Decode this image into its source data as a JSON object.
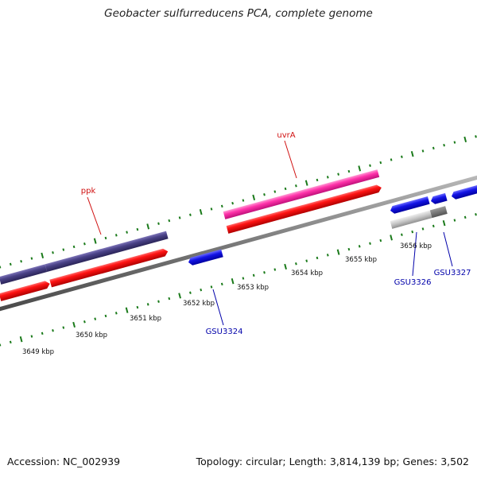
{
  "title": "Geobacter sulfurreducens PCA, complete genome",
  "footer": {
    "accession": "Accession: NC_002939",
    "summary": "Topology: circular; Length: 3,814,139 bp; Genes: 3,502"
  },
  "colors": {
    "backbone": "#7a7a7a",
    "tick": "#1a7a1a",
    "gene_blue": "#1414e6",
    "gene_red": "#ff1010",
    "gene_purple": "#4a4287",
    "gene_pink": "#ff33aa",
    "gene_grey": "#b8b8b8",
    "label_red": "#d01010",
    "label_blue": "#0000aa"
  },
  "scale_labels": [
    "3649 kbp",
    "3650 kbp",
    "3651 kbp",
    "3652 kbp",
    "3653 kbp",
    "3654 kbp",
    "3655 kbp",
    "3656 kbp"
  ],
  "gene_labels": [
    {
      "name": "ppk",
      "color": "red"
    },
    {
      "name": "uvrA",
      "color": "red"
    },
    {
      "name": "GSU3324",
      "color": "blue"
    },
    {
      "name": "GSU3326",
      "color": "blue"
    },
    {
      "name": "GSU3327",
      "color": "blue"
    }
  ]
}
